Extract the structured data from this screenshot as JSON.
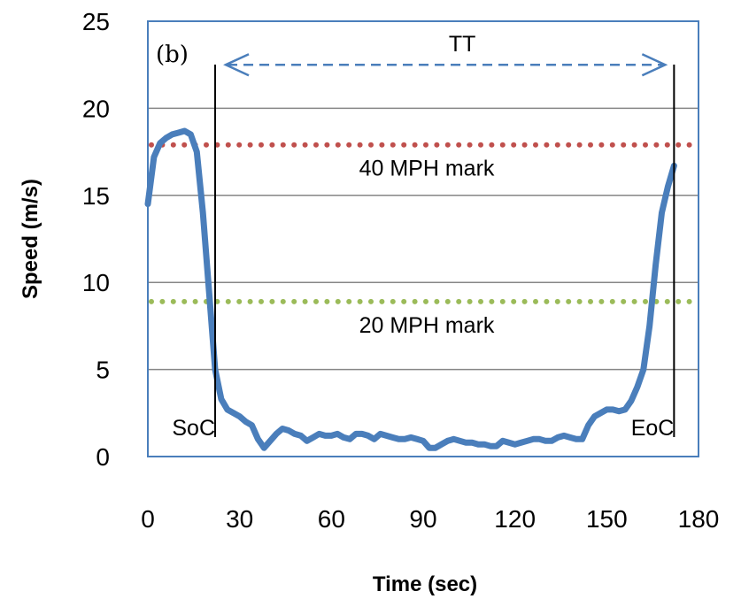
{
  "chart_data": {
    "type": "line",
    "panel_label": "(b)",
    "xlabel": "Time (sec)",
    "ylabel": "Speed (m/s)",
    "xlim": [
      0,
      180
    ],
    "ylim": [
      0,
      25
    ],
    "x_ticks": [
      "0",
      "30",
      "60",
      "90",
      "120",
      "150",
      "180"
    ],
    "y_ticks": [
      "0",
      "5",
      "10",
      "15",
      "20",
      "25"
    ],
    "grid": "horizontal",
    "series": [
      {
        "color": "#4a7ebb",
        "x": [
          0,
          2,
          4,
          6,
          8,
          10,
          12,
          14,
          16,
          18,
          20,
          22,
          24,
          26,
          28,
          30,
          32,
          34,
          36,
          38,
          40,
          42,
          44,
          46,
          48,
          50,
          52,
          54,
          56,
          58,
          60,
          62,
          64,
          66,
          68,
          70,
          72,
          74,
          76,
          78,
          80,
          82,
          84,
          86,
          88,
          90,
          92,
          94,
          96,
          98,
          100,
          102,
          104,
          106,
          108,
          110,
          112,
          114,
          116,
          118,
          120,
          122,
          124,
          126,
          128,
          130,
          132,
          134,
          136,
          138,
          140,
          142,
          144,
          146,
          148,
          150,
          152,
          154,
          156,
          158,
          160,
          162,
          164,
          166,
          168,
          170,
          172
        ],
        "values": [
          14.5,
          17.2,
          18.0,
          18.3,
          18.5,
          18.6,
          18.7,
          18.5,
          17.5,
          14.0,
          9.5,
          5.0,
          3.3,
          2.7,
          2.5,
          2.3,
          2.0,
          1.8,
          1.0,
          0.5,
          0.9,
          1.3,
          1.6,
          1.5,
          1.3,
          1.2,
          0.9,
          1.1,
          1.3,
          1.2,
          1.2,
          1.3,
          1.1,
          1.0,
          1.3,
          1.3,
          1.2,
          1.0,
          1.3,
          1.2,
          1.1,
          1.0,
          1.0,
          1.1,
          1.0,
          0.9,
          0.5,
          0.5,
          0.7,
          0.9,
          1.0,
          0.9,
          0.8,
          0.8,
          0.7,
          0.7,
          0.6,
          0.6,
          0.9,
          0.8,
          0.7,
          0.8,
          0.9,
          1.0,
          1.0,
          0.9,
          0.9,
          1.1,
          1.2,
          1.1,
          1.0,
          1.0,
          1.8,
          2.3,
          2.5,
          2.7,
          2.7,
          2.6,
          2.7,
          3.2,
          4.0,
          5.0,
          7.5,
          11.0,
          14.0,
          15.5,
          16.7
        ]
      }
    ],
    "reference_lines": [
      {
        "label": "40 MPH mark",
        "y": 17.9,
        "color": "#c0504d"
      },
      {
        "label": "20 MPH mark",
        "y": 8.9,
        "color": "#9bbb59"
      }
    ],
    "markers": [
      {
        "label": "SoC",
        "x": 22
      },
      {
        "label": "EoC",
        "x": 172
      }
    ],
    "interval": {
      "label": "TT",
      "from": 22,
      "to": 172,
      "y": 22.5,
      "color": "#4a7ebb"
    }
  }
}
